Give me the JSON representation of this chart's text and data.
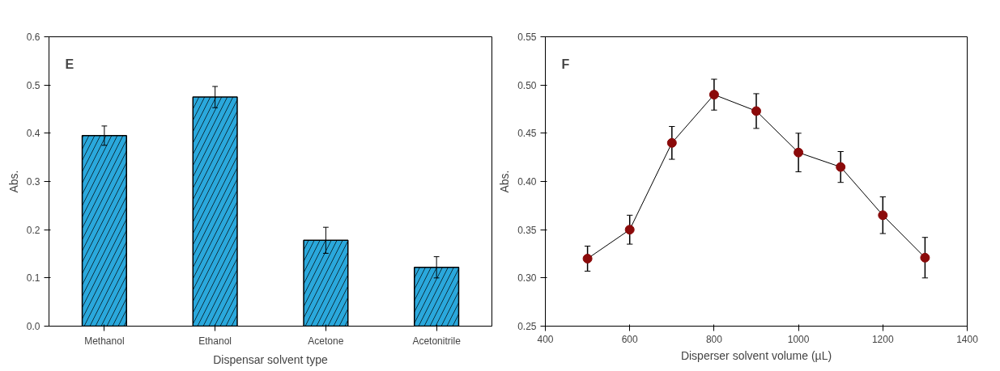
{
  "chart_data": [
    {
      "type": "bar",
      "annotations": [
        "E"
      ],
      "xlabel": "Dispensar solvent type",
      "ylabel": "Abs.",
      "categories": [
        "Methanol",
        "Ethanol",
        "Acetone",
        "Acetonitrile"
      ],
      "values": [
        0.395,
        0.475,
        0.178,
        0.122
      ],
      "errors": [
        0.02,
        0.022,
        0.027,
        0.022
      ],
      "color": "#2aa8dc",
      "ylim": [
        0,
        0.6
      ],
      "yticks": [
        {
          "value": 0,
          "label": "0.0"
        },
        0.1,
        0.2,
        0.3,
        0.4,
        0.5,
        0.6
      ],
      "grid": false
    },
    {
      "type": "line",
      "annotations": [
        "F"
      ],
      "xlabel": "Disperser solvent volume (µL)",
      "ylabel": "Abs.",
      "x": [
        500,
        600,
        700,
        800,
        900,
        1000,
        1100,
        1200,
        1300
      ],
      "values": [
        0.32,
        0.35,
        0.44,
        0.49,
        0.473,
        0.43,
        0.415,
        0.365,
        0.321
      ],
      "errors": [
        0.013,
        0.015,
        0.017,
        0.016,
        0.018,
        0.02,
        0.016,
        0.019,
        0.021
      ],
      "color": "#8b0a0a",
      "marker": "circle",
      "line_style": "solid",
      "xlim": [
        400,
        1400
      ],
      "xticks": [
        400,
        600,
        800,
        1000,
        1200,
        1400
      ],
      "ylim": [
        0.25,
        0.55
      ],
      "yticks": [
        0.25,
        {
          "value": 0.3,
          "label": "0.30"
        },
        0.35,
        {
          "value": 0.4,
          "label": "0.40"
        },
        0.45,
        {
          "value": 0.5,
          "label": "0.50"
        },
        0.55
      ],
      "grid": false
    }
  ]
}
